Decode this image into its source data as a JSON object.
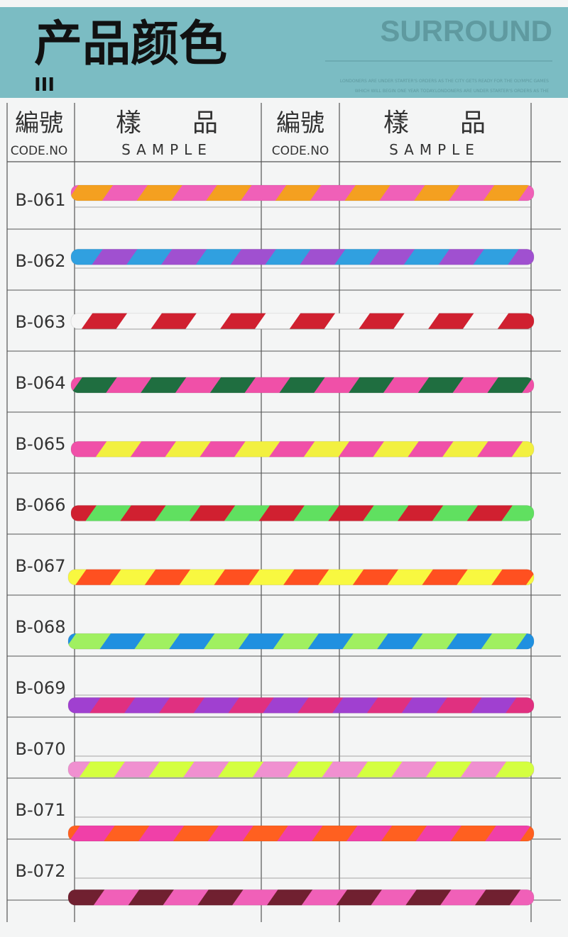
{
  "header": {
    "title": "产品颜色",
    "brand": "SURROUND",
    "tagline": [
      "LONDONERS ARE UNDER STARTER'S ORDERS AS THE CITY GETS READY FOR THE OLYMPIC GAMES",
      "WHICH WILL BEGIN ONE YEAR TODAY.LONDONERS ARE UNDER STARTER'S ORDERS AS THE"
    ],
    "mark": "III"
  },
  "table": {
    "columns": [
      {
        "zh": "編號",
        "en": "CODE.NO"
      },
      {
        "zh": "樣　　品",
        "en": "SAMPLE"
      },
      {
        "zh": "編號",
        "en": "CODE.NO"
      },
      {
        "zh": "樣　　品",
        "en": "SAMPLE"
      }
    ],
    "rows": [
      {
        "code": "B-061",
        "colors": [
          "#f4a020",
          "#f060b8"
        ]
      },
      {
        "code": "B-062",
        "colors": [
          "#a050d0",
          "#30a0e0"
        ]
      },
      {
        "code": "B-063",
        "colors": [
          "#f6f6f6",
          "#d02030"
        ]
      },
      {
        "code": "B-064",
        "colors": [
          "#1f6e40",
          "#f050a8"
        ]
      },
      {
        "code": "B-065",
        "colors": [
          "#f2f040",
          "#f050a8"
        ]
      },
      {
        "code": "B-066",
        "colors": [
          "#d02030",
          "#60e060"
        ]
      },
      {
        "code": "B-067",
        "colors": [
          "#ff5020",
          "#f8f840"
        ]
      },
      {
        "code": "B-068",
        "colors": [
          "#2090e0",
          "#a0f060"
        ]
      },
      {
        "code": "B-069",
        "colors": [
          "#a040d0",
          "#e03080"
        ]
      },
      {
        "code": "B-070",
        "colors": [
          "#d4ff40",
          "#f090d0"
        ]
      },
      {
        "code": "B-071",
        "colors": [
          "#ff6020",
          "#f040a8"
        ]
      },
      {
        "code": "B-072",
        "colors": [
          "#702030",
          "#f060b8"
        ]
      }
    ]
  }
}
